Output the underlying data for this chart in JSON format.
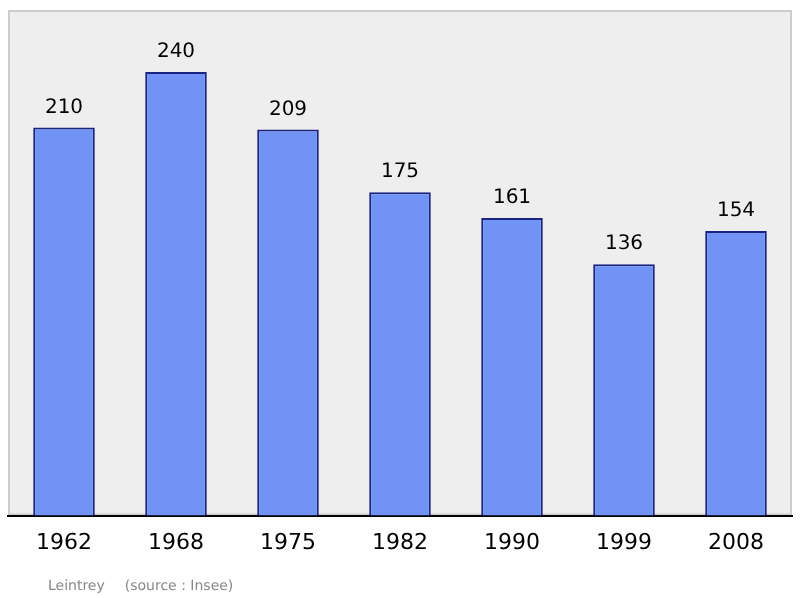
{
  "chart_data": {
    "type": "bar",
    "categories": [
      "1962",
      "1968",
      "1975",
      "1982",
      "1990",
      "1999",
      "2008"
    ],
    "values": [
      210,
      240,
      209,
      175,
      161,
      136,
      154
    ],
    "color": "#7093f5",
    "data_labels": true,
    "grid": false,
    "annotations": [
      "Leintrey",
      "(source : Insee)"
    ]
  }
}
